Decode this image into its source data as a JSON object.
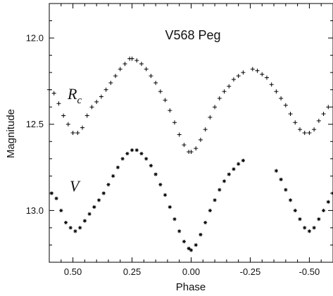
{
  "chart_data": {
    "type": "scatter",
    "title": "V568 Peg",
    "xlabel": "Phase",
    "ylabel": "Magnitude",
    "xlim": [
      0.6,
      -0.6
    ],
    "ylim": [
      11.8,
      13.3
    ],
    "y_inverted": true,
    "x_inverted": true,
    "xticks": [
      0.5,
      0.25,
      0.0,
      -0.25,
      -0.5
    ],
    "xtick_labels": [
      "0.50",
      "0.25",
      "0.00",
      "-0.25",
      "-0.50"
    ],
    "yticks": [
      12.0,
      12.5,
      13.0
    ],
    "ytick_labels": [
      "12.0",
      "12.5",
      "13.0"
    ],
    "grid": false,
    "legend": "none",
    "series": [
      {
        "name_main": "R",
        "name_sub": "c",
        "marker": "plus",
        "points": [
          [
            0.6,
            12.3
          ],
          [
            0.58,
            12.32
          ],
          [
            0.56,
            12.38
          ],
          [
            0.54,
            12.45
          ],
          [
            0.52,
            12.5
          ],
          [
            0.5,
            12.55
          ],
          [
            0.48,
            12.55
          ],
          [
            0.46,
            12.52
          ],
          [
            0.44,
            12.45
          ],
          [
            0.42,
            12.4
          ],
          [
            0.4,
            12.37
          ],
          [
            0.38,
            12.34
          ],
          [
            0.36,
            12.3
          ],
          [
            0.34,
            12.26
          ],
          [
            0.32,
            12.22
          ],
          [
            0.3,
            12.18
          ],
          [
            0.28,
            12.15
          ],
          [
            0.26,
            12.12
          ],
          [
            0.25,
            12.12
          ],
          [
            0.23,
            12.13
          ],
          [
            0.21,
            12.15
          ],
          [
            0.19,
            12.18
          ],
          [
            0.17,
            12.22
          ],
          [
            0.15,
            12.26
          ],
          [
            0.13,
            12.31
          ],
          [
            0.11,
            12.36
          ],
          [
            0.09,
            12.42
          ],
          [
            0.07,
            12.49
          ],
          [
            0.05,
            12.56
          ],
          [
            0.03,
            12.62
          ],
          [
            0.01,
            12.66
          ],
          [
            0.0,
            12.66
          ],
          [
            -0.02,
            12.64
          ],
          [
            -0.04,
            12.59
          ],
          [
            -0.06,
            12.53
          ],
          [
            -0.08,
            12.46
          ],
          [
            -0.1,
            12.4
          ],
          [
            -0.12,
            12.35
          ],
          [
            -0.14,
            12.31
          ],
          [
            -0.16,
            12.28
          ],
          [
            -0.18,
            12.24
          ],
          [
            -0.2,
            12.22
          ],
          [
            -0.22,
            12.2
          ],
          [
            -0.26,
            12.18
          ],
          [
            -0.28,
            12.19
          ],
          [
            -0.3,
            12.21
          ],
          [
            -0.32,
            12.23
          ],
          [
            -0.34,
            12.27
          ],
          [
            -0.36,
            12.31
          ],
          [
            -0.38,
            12.35
          ],
          [
            -0.4,
            12.39
          ],
          [
            -0.42,
            12.44
          ],
          [
            -0.44,
            12.49
          ],
          [
            -0.46,
            12.53
          ],
          [
            -0.48,
            12.55
          ],
          [
            -0.5,
            12.55
          ],
          [
            -0.52,
            12.53
          ],
          [
            -0.54,
            12.48
          ],
          [
            -0.56,
            12.44
          ],
          [
            -0.58,
            12.4
          ]
        ]
      },
      {
        "name_main": "V",
        "name_sub": "",
        "marker": "asterisk",
        "points": [
          [
            0.59,
            12.9
          ],
          [
            0.57,
            12.93
          ],
          [
            0.55,
            13.0
          ],
          [
            0.53,
            13.07
          ],
          [
            0.51,
            13.1
          ],
          [
            0.49,
            13.12
          ],
          [
            0.47,
            13.1
          ],
          [
            0.45,
            13.06
          ],
          [
            0.43,
            13.02
          ],
          [
            0.41,
            12.98
          ],
          [
            0.39,
            12.94
          ],
          [
            0.37,
            12.9
          ],
          [
            0.35,
            12.85
          ],
          [
            0.33,
            12.8
          ],
          [
            0.31,
            12.75
          ],
          [
            0.29,
            12.7
          ],
          [
            0.27,
            12.67
          ],
          [
            0.25,
            12.65
          ],
          [
            0.23,
            12.65
          ],
          [
            0.21,
            12.67
          ],
          [
            0.19,
            12.7
          ],
          [
            0.17,
            12.74
          ],
          [
            0.15,
            12.79
          ],
          [
            0.13,
            12.85
          ],
          [
            0.11,
            12.91
          ],
          [
            0.09,
            12.98
          ],
          [
            0.07,
            13.05
          ],
          [
            0.05,
            13.12
          ],
          [
            0.03,
            13.18
          ],
          [
            0.01,
            13.22
          ],
          [
            0.0,
            13.23
          ],
          [
            -0.02,
            13.2
          ],
          [
            -0.04,
            13.14
          ],
          [
            -0.06,
            13.07
          ],
          [
            -0.08,
            13.0
          ],
          [
            -0.1,
            12.94
          ],
          [
            -0.12,
            12.88
          ],
          [
            -0.14,
            12.83
          ],
          [
            -0.16,
            12.79
          ],
          [
            -0.18,
            12.76
          ],
          [
            -0.2,
            12.73
          ],
          [
            -0.22,
            12.71
          ],
          [
            -0.36,
            12.77
          ],
          [
            -0.38,
            12.82
          ],
          [
            -0.4,
            12.88
          ],
          [
            -0.42,
            12.94
          ],
          [
            -0.44,
            13.0
          ],
          [
            -0.46,
            13.05
          ],
          [
            -0.48,
            13.1
          ],
          [
            -0.5,
            13.12
          ],
          [
            -0.52,
            13.1
          ],
          [
            -0.54,
            13.05
          ],
          [
            -0.56,
            13.0
          ],
          [
            -0.58,
            12.95
          ],
          [
            -0.6,
            12.9
          ]
        ]
      }
    ]
  }
}
